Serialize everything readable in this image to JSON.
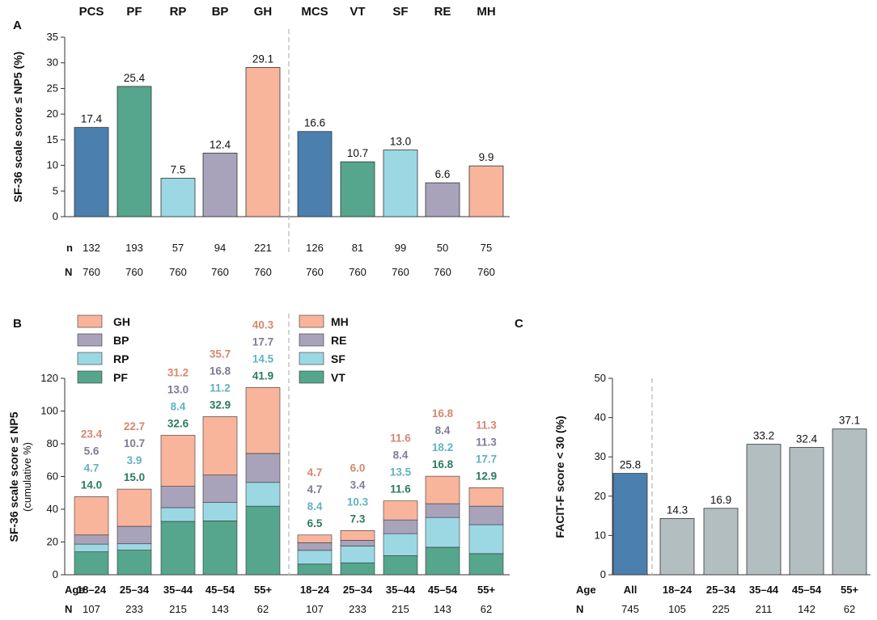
{
  "colors": {
    "pcs": "#4a7fae",
    "pf": "#55a68c",
    "rp": "#9bd8e4",
    "bp": "#a8a3bb",
    "gh": "#f9b49c",
    "gh_text": "#d4886e",
    "bp_text": "#7e7b98",
    "rp_text": "#62b2c4",
    "pf_text": "#2c7a60",
    "facit_all": "#4a7fae",
    "facit_age": "#b3bec0",
    "dash": "#b5b5b5",
    "axis": "#333333"
  },
  "chart_data": [
    {
      "id": "A",
      "type": "bar",
      "panel_label": "A",
      "ylabel": "SF-36 scale score ≤ NP5 (%)",
      "ylim": [
        0,
        35
      ],
      "yticks": [
        "0",
        "5",
        "10",
        "15",
        "20",
        "25",
        "30",
        "35"
      ],
      "categories": [
        "PCS",
        "PF",
        "RP",
        "BP",
        "GH",
        "MCS",
        "VT",
        "SF",
        "RE",
        "MH"
      ],
      "values": [
        17.4,
        25.4,
        7.5,
        12.4,
        29.1,
        16.6,
        10.7,
        13.0,
        6.6,
        9.9
      ],
      "value_labels": [
        "17.4",
        "25.4",
        "7.5",
        "12.4",
        "29.1",
        "16.6",
        "10.7",
        "13.0",
        "6.6",
        "9.9"
      ],
      "color_keys": [
        "pcs",
        "pf",
        "rp",
        "bp",
        "gh",
        "pcs",
        "pf",
        "rp",
        "bp",
        "gh"
      ],
      "n_label": "n",
      "n": [
        "132",
        "193",
        "57",
        "94",
        "221",
        "126",
        "81",
        "99",
        "50",
        "75"
      ],
      "N_label": "N",
      "N": [
        "760",
        "760",
        "760",
        "760",
        "760",
        "760",
        "760",
        "760",
        "760",
        "760"
      ]
    },
    {
      "id": "B",
      "type": "stacked-bar",
      "panel_label": "B",
      "ylabel": "SF-36 scale score ≤ NP5",
      "ylabel2": "(cumulative %)",
      "ylim": [
        0,
        120
      ],
      "yticks": [
        "0",
        "20",
        "40",
        "60",
        "80",
        "100",
        "120"
      ],
      "legend_left": [
        {
          "label": "GH",
          "color_key": "gh"
        },
        {
          "label": "BP",
          "color_key": "bp"
        },
        {
          "label": "RP",
          "color_key": "rp"
        },
        {
          "label": "PF",
          "color_key": "pf"
        }
      ],
      "legend_right": [
        {
          "label": "MH",
          "color_key": "gh"
        },
        {
          "label": "RE",
          "color_key": "bp"
        },
        {
          "label": "SF",
          "color_key": "rp"
        },
        {
          "label": "VT",
          "color_key": "pf"
        }
      ],
      "age_label": "Age",
      "N_label": "N",
      "groups": [
        {
          "series": [
            "PF",
            "RP",
            "BP",
            "GH"
          ],
          "categories": [
            "18–24",
            "25–34",
            "35–44",
            "45–54",
            "55+"
          ],
          "N": [
            "107",
            "233",
            "215",
            "143",
            "62"
          ],
          "stacks": [
            [
              14.0,
              4.7,
              5.6,
              23.4
            ],
            [
              15.0,
              3.9,
              10.7,
              22.7
            ],
            [
              32.6,
              8.4,
              13.0,
              31.2
            ],
            [
              32.9,
              11.2,
              16.8,
              35.7
            ],
            [
              41.9,
              14.5,
              17.7,
              40.3
            ]
          ],
          "labels": [
            [
              "14.0",
              "4.7",
              "5.6",
              "23.4"
            ],
            [
              "15.0",
              "3.9",
              "10.7",
              "22.7"
            ],
            [
              "32.6",
              "8.4",
              "13.0",
              "31.2"
            ],
            [
              "32.9",
              "11.2",
              "16.8",
              "35.7"
            ],
            [
              "41.9",
              "14.5",
              "17.7",
              "40.3"
            ]
          ]
        },
        {
          "series": [
            "VT",
            "SF",
            "RE",
            "MH"
          ],
          "categories": [
            "18–24",
            "25–34",
            "35–44",
            "45–54",
            "55+"
          ],
          "N": [
            "107",
            "233",
            "215",
            "143",
            "62"
          ],
          "stacks": [
            [
              6.5,
              8.4,
              4.7,
              4.7
            ],
            [
              7.3,
              10.3,
              3.4,
              6.0
            ],
            [
              11.6,
              13.5,
              8.4,
              11.6
            ],
            [
              16.8,
              18.2,
              8.4,
              16.8
            ],
            [
              12.9,
              17.7,
              11.3,
              11.3
            ]
          ],
          "labels": [
            [
              "6.5",
              "8.4",
              "4.7",
              "4.7"
            ],
            [
              "7.3",
              "10.3",
              "3.4",
              "6.0"
            ],
            [
              "11.6",
              "13.5",
              "8.4",
              "11.6"
            ],
            [
              "16.8",
              "18.2",
              "8.4",
              "16.8"
            ],
            [
              "12.9",
              "17.7",
              "11.3",
              "11.3"
            ]
          ]
        }
      ]
    },
    {
      "id": "C",
      "type": "bar",
      "panel_label": "C",
      "ylabel": "FACIT-F score < 30 (%)",
      "ylim": [
        0,
        50
      ],
      "yticks": [
        "0",
        "10",
        "20",
        "30",
        "40",
        "50"
      ],
      "age_label": "Age",
      "N_label": "N",
      "categories": [
        "All",
        "18–24",
        "25–34",
        "35–44",
        "45–54",
        "55+"
      ],
      "values": [
        25.8,
        14.3,
        16.9,
        33.2,
        32.4,
        37.1
      ],
      "value_labels": [
        "25.8",
        "14.3",
        "16.9",
        "33.2",
        "32.4",
        "37.1"
      ],
      "N": [
        "745",
        "105",
        "225",
        "211",
        "142",
        "62"
      ]
    }
  ]
}
